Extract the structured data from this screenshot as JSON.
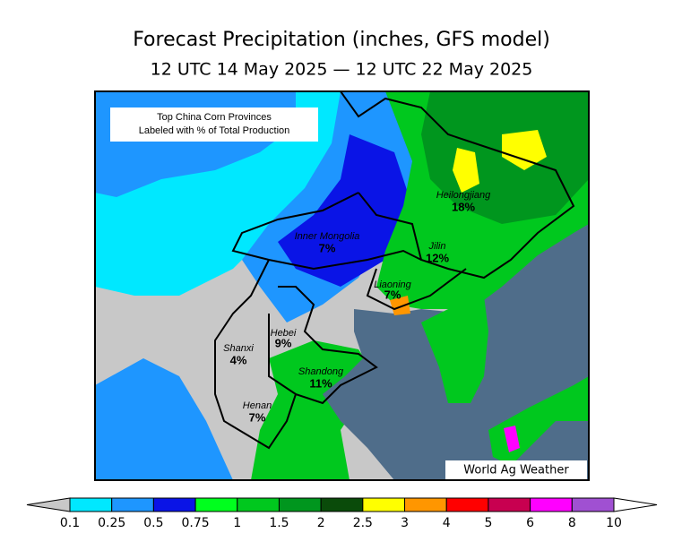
{
  "title": "Forecast Precipitation (inches, GFS model)",
  "subtitle": "12 UTC 14 May 2025 — 12 UTC 22 May 2025",
  "inset": {
    "line1": "Top China Corn Provinces",
    "line2": "Labeled with % of Total Production"
  },
  "provinces": [
    {
      "name": "Heilongjiang",
      "share": "18%"
    },
    {
      "name": "Inner Mongolia",
      "share": "7%"
    },
    {
      "name": "Jilin",
      "share": "12%"
    },
    {
      "name": "Liaoning",
      "share": "7%"
    },
    {
      "name": "Hebei",
      "share": "9%"
    },
    {
      "name": "Shanxi",
      "share": "4%"
    },
    {
      "name": "Shandong",
      "share": "11%"
    },
    {
      "name": "Henan",
      "share": "7%"
    }
  ],
  "credit": "World Ag Weather",
  "colorbar": {
    "levels": [
      0.1,
      0.25,
      0.5,
      0.75,
      1,
      1.5,
      2,
      2.5,
      3,
      4,
      5,
      6,
      8,
      10
    ],
    "colors": [
      "#00e8ff",
      "#1e96ff",
      "#0a14e6",
      "#00ff1e",
      "#00c81e",
      "#00961e",
      "#0a4b0a",
      "#ffff00",
      "#ff9600",
      "#ff0000",
      "#c80050",
      "#ff00ff",
      "#a050d2"
    ],
    "under_color": "#c8c8c8",
    "over_color": "#ffffff"
  }
}
